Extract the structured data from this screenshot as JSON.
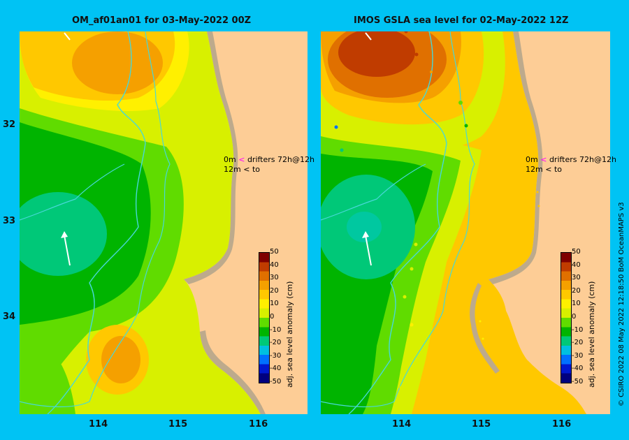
{
  "left_panel": {
    "title": "OM_af01an01 for 03-May-2022 00Z",
    "legend_label_1": "drifters 72h@12h",
    "legend_label_2": "to",
    "legend_depth_1": "0m",
    "legend_depth_2": "12m",
    "legend_symbol_1": "<",
    "legend_symbol_2": "<"
  },
  "right_panel": {
    "title": "IMOS GSLA sea level  for 02-May-2022 12Z",
    "legend_label_1": "drifters 72h@12h",
    "legend_label_2": "to",
    "legend_depth_1": "0m",
    "legend_depth_2": "12m",
    "legend_symbol_1": "<",
    "legend_symbol_2": "<"
  },
  "y_ticks": [
    "32",
    "33",
    "34"
  ],
  "x_ticks": [
    "114",
    "115",
    "116"
  ],
  "colorbar": {
    "title": "adj. sea level anomaly (cm)",
    "ticks": [
      "50",
      "40",
      "30",
      "20",
      "10",
      "0",
      "-10",
      "-20",
      "-30",
      "-40",
      "-50"
    ],
    "colors": [
      "#00007f",
      "#0018d0",
      "#0070ff",
      "#00c0e0",
      "#00c878",
      "#00b400",
      "#60dc00",
      "#d8f000",
      "#fff000",
      "#ffc800",
      "#f5a000",
      "#e07000",
      "#c03c00",
      "#7f0000"
    ]
  },
  "credit": "© CSIRO 2022   08 May 2022 12:18:50 BoM OceanMAPS v3",
  "colors": {
    "background": "#00c3f4",
    "land": "#fdcd96",
    "coast_sand": "#bdaa8c",
    "isobath": "#48d8d8",
    "arrow": "#ffffff"
  }
}
